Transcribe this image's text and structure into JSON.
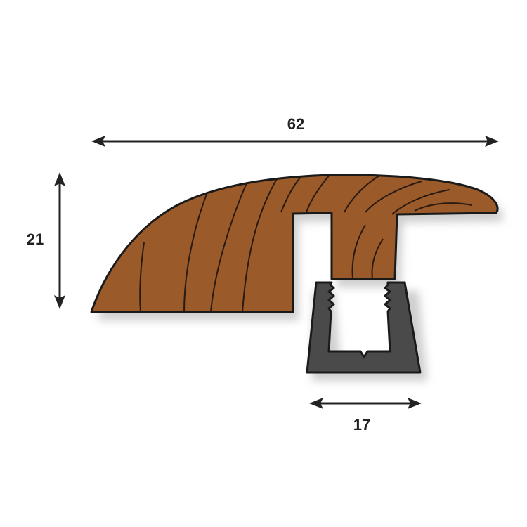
{
  "dimensions": {
    "width_label": "62",
    "height_label": "21",
    "track_width_label": "17"
  },
  "colors": {
    "wood_fill": "#9a5a2a",
    "wood_grain": "#2a1a10",
    "track_fill": "#4a4a4a",
    "outline": "#1a1a1a",
    "arrow": "#222222",
    "shadow": "#cfcfcf"
  }
}
